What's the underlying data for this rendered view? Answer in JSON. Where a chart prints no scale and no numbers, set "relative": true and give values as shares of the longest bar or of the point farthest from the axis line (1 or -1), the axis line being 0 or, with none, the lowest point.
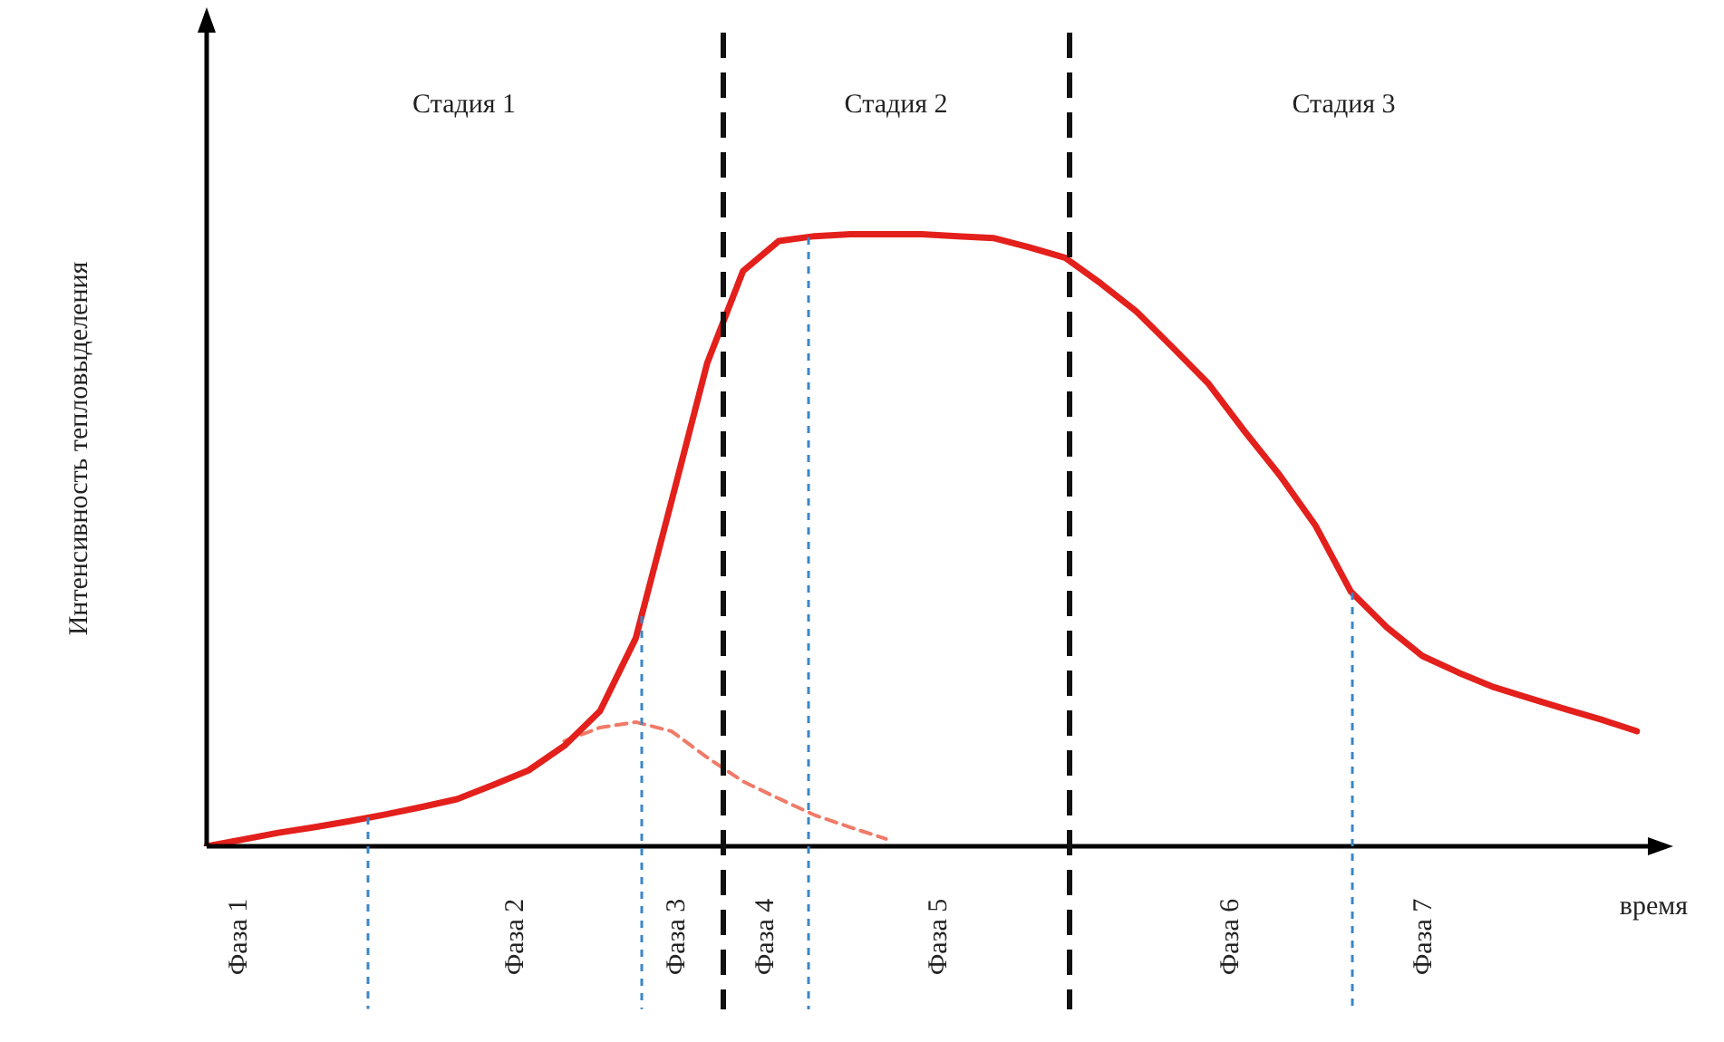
{
  "chart_data": {
    "type": "line",
    "relative": true,
    "xlabel": "время",
    "ylabel": "Интенсивность тепловыделения",
    "tick_labels": false,
    "legend": false,
    "marker": "none",
    "categories": [
      null,
      null,
      null,
      null,
      null,
      null,
      null,
      null,
      null,
      null,
      null,
      null,
      null,
      null,
      null,
      null,
      null,
      null,
      null,
      null,
      null,
      null,
      null,
      null,
      null,
      null,
      null,
      null,
      null,
      null,
      null,
      null,
      null,
      null,
      null,
      null,
      null,
      null,
      null,
      null,
      null
    ],
    "series": [
      {
        "color": "#e3201c",
        "line_style": "solid",
        "values": [
          0,
          0.011,
          0.022,
          0.031,
          0.041,
          0.052,
          0.064,
          0.077,
          0.1,
          0.124,
          0.164,
          0.221,
          0.34,
          0.564,
          0.79,
          0.94,
          0.989,
          0.997,
          1.0,
          1.0,
          1.0,
          0.997,
          0.994,
          0.979,
          0.962,
          0.92,
          0.874,
          0.816,
          0.757,
          0.68,
          0.607,
          0.525,
          0.416,
          0.358,
          0.311,
          0.284,
          0.26,
          0.242,
          0.224,
          0.207,
          0.188
        ]
      },
      {
        "color": "#f07a68",
        "line_style": "dashed",
        "values": [
          null,
          null,
          null,
          null,
          null,
          null,
          null,
          null,
          null,
          null,
          0.172,
          0.194,
          0.203,
          0.188,
          0.145,
          0.106,
          0.078,
          0.051,
          0.031,
          0.012,
          null,
          null,
          null,
          null,
          null,
          null,
          null,
          null,
          null,
          null,
          null,
          null,
          null,
          null,
          null,
          null,
          null,
          null,
          null,
          null,
          null
        ]
      }
    ],
    "annotations": [
      "Стадия 1",
      "Стадия 2",
      "Стадия 3",
      "Фаза 1",
      "Фаза 2",
      "Фаза 3",
      "Фаза 4",
      "Фаза 5",
      "Фаза 6",
      "Фаза 7"
    ]
  }
}
